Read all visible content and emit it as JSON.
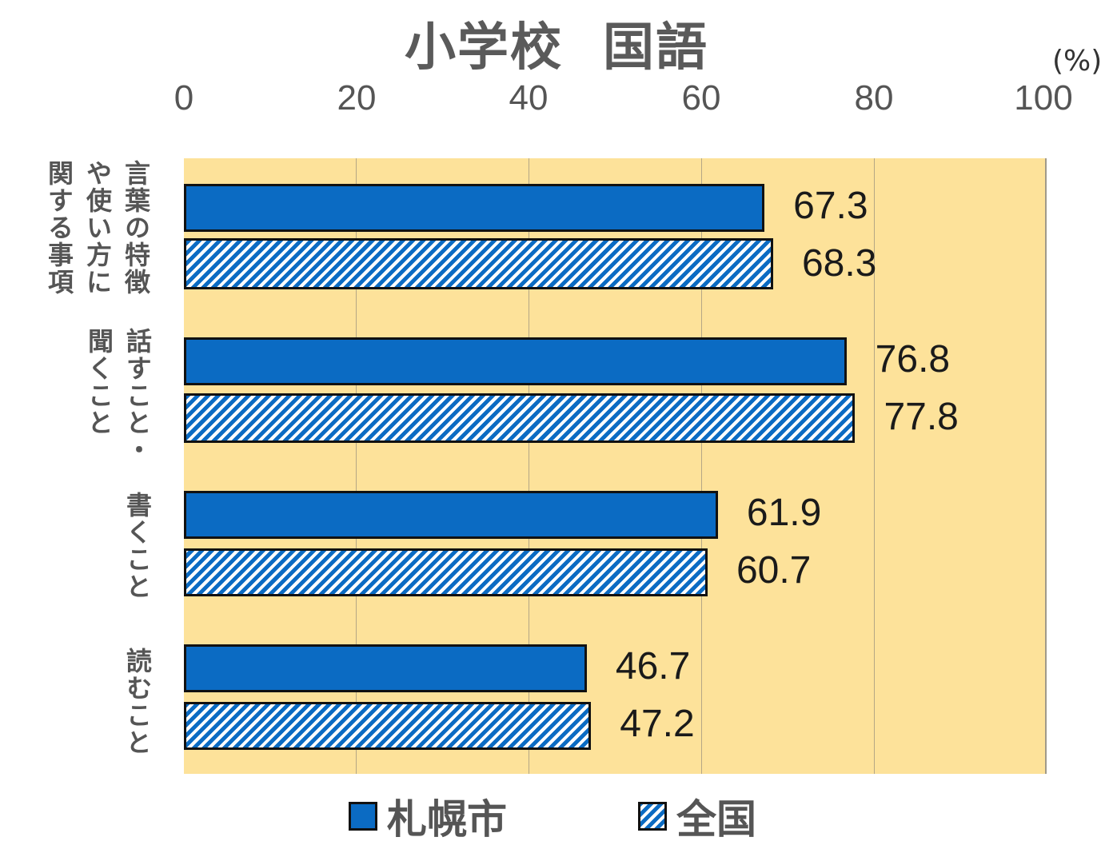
{
  "chart_data": {
    "type": "bar",
    "orientation": "horizontal",
    "title": "小学校　国語",
    "title_parts": [
      "小学校",
      "国語"
    ],
    "xlabel": "",
    "ylabel": "",
    "unit": "(%)",
    "xlim": [
      0,
      100
    ],
    "ticks": [
      "0",
      "20",
      "40",
      "60",
      "80",
      "100"
    ],
    "grid": true,
    "legend_position": "bottom",
    "categories": [
      "言葉の特徴や使い方に関する事項",
      "話すこと・聞くこと",
      "書くこと",
      "読むこと"
    ],
    "category_lines": [
      [
        "言葉の特徴",
        "や使い方に",
        "関する事項"
      ],
      [
        "話すこと・",
        "聞くこと"
      ],
      [
        "書くこと"
      ],
      [
        "読むこと"
      ]
    ],
    "series": [
      {
        "name": "札幌市",
        "pattern": "solid",
        "color": "#0b6bc3",
        "values": [
          67.3,
          76.8,
          61.9,
          46.7
        ],
        "labels": [
          "67.3",
          "76.8",
          "61.9",
          "46.7"
        ]
      },
      {
        "name": "全国",
        "pattern": "hatched",
        "color": "#0b6bc3",
        "values": [
          68.3,
          77.8,
          60.7,
          47.2
        ],
        "labels": [
          "68.3",
          "77.8",
          "60.7",
          "47.2"
        ]
      }
    ]
  },
  "colors": {
    "plot_background": "#fde29a",
    "bar_blue": "#0b6bc3",
    "title_text": "#5a5a5a"
  }
}
